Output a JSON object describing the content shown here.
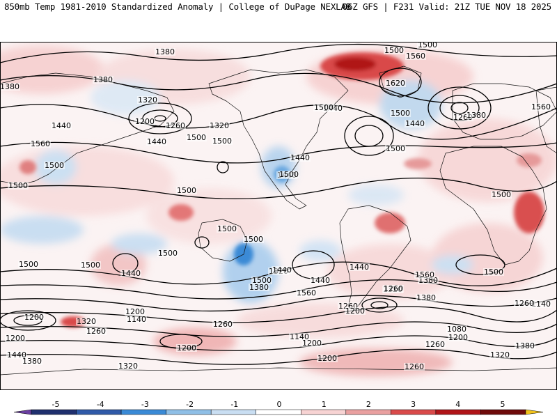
{
  "header": {
    "left": "850mb Temp 1981-2010 Standardized Anomaly | College of DuPage NEXLAB",
    "right": "06Z GFS | F231 Valid: 21Z TUE NOV 18 2025"
  },
  "colorbar": {
    "ticks": [
      "-5",
      "-4",
      "-3",
      "-2",
      "-1",
      "0",
      "1",
      "2",
      "3",
      "4",
      "5"
    ],
    "colors": [
      "#6a3fa0",
      "#1f2f6e",
      "#2f5aa8",
      "#3a8ad6",
      "#8fbfe6",
      "#c9def2",
      "#ffffff",
      "#f7d3d3",
      "#e9a0a0",
      "#d94a4a",
      "#b01418",
      "#6e0a0a",
      "#f2c21a"
    ]
  },
  "contours": {
    "labels": [
      "1380",
      "1380",
      "1380",
      "1320",
      "1200",
      "1260",
      "1320",
      "1440",
      "1440",
      "1560",
      "1500",
      "1500",
      "1500",
      "1500",
      "1440",
      "1500",
      "1440",
      "1500",
      "1560",
      "1620",
      "1500",
      "1440",
      "1500",
      "1500",
      "1500",
      "1260",
      "1380",
      "1440",
      "1500",
      "1560",
      "1500",
      "1500",
      "1500",
      "1500",
      "1500",
      "1500",
      "1440",
      "1500",
      "1380",
      "1320",
      "1440",
      "1560",
      "1440",
      "1380",
      "1560",
      "1500",
      "1440",
      "1380",
      "1320",
      "1260",
      "1200",
      "1320",
      "1200",
      "1140",
      "1260",
      "1260",
      "1200",
      "1140",
      "1200",
      "1260",
      "1140",
      "1080",
      "1260",
      "1200",
      "1320",
      "1200",
      "1440",
      "1380",
      "1380",
      "1320",
      "1200",
      "1260",
      "1200",
      "1260",
      "1440"
    ]
  }
}
